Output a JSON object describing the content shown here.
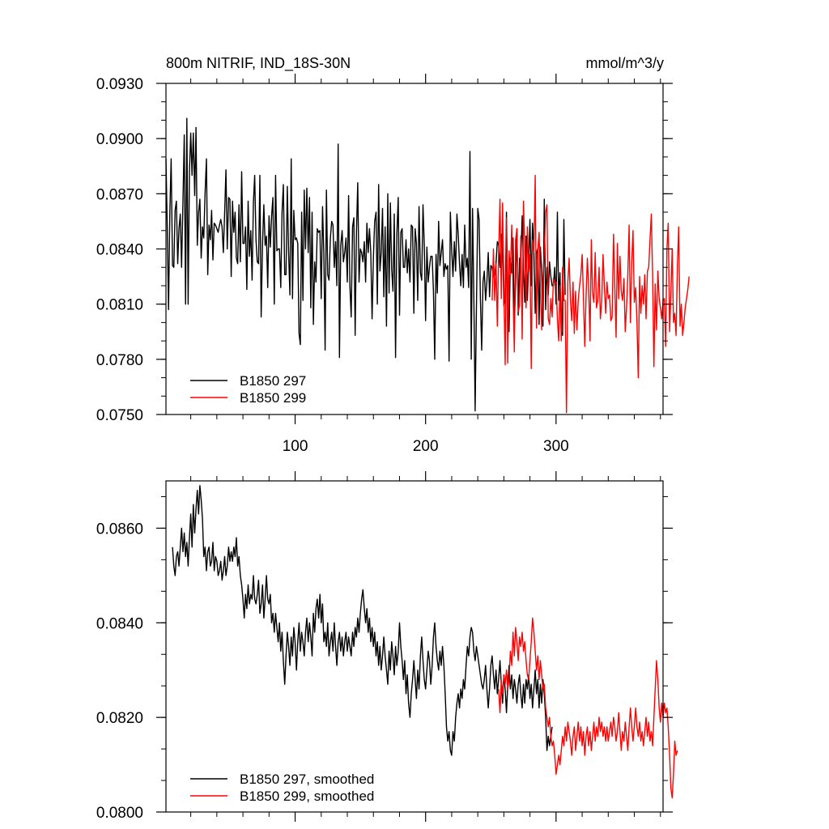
{
  "chart_data": [
    {
      "type": "line",
      "title": "800m NITRIF, IND_18S-30N",
      "units": "mmol/m^3/y",
      "xlabel": "",
      "ylabel": "",
      "xlim": [
        1,
        382
      ],
      "ylim": [
        0.075,
        0.093
      ],
      "xticks": [
        100,
        200,
        300
      ],
      "xtick_labels": [
        "100",
        "200",
        "300"
      ],
      "yticks": [
        0.075,
        0.078,
        0.081,
        0.084,
        0.087,
        0.09,
        0.093
      ],
      "ytick_labels": [
        "0.0750",
        "0.0780",
        "0.0810",
        "0.0840",
        "0.0870",
        "0.0900",
        "0.0930"
      ],
      "grid": false,
      "legend": "bottom-left",
      "series": [
        {
          "name": "B1850 297",
          "color": "#000000",
          "x_start": 1,
          "values": [
            0.0889,
            0.0852,
            0.0807,
            0.086,
            0.0889,
            0.0831,
            0.083,
            0.0861,
            0.0866,
            0.0832,
            0.0851,
            0.0859,
            0.083,
            0.0866,
            0.0902,
            0.081,
            0.0911,
            0.081,
            0.0882,
            0.0903,
            0.088,
            0.0903,
            0.0869,
            0.0906,
            0.0842,
            0.086,
            0.0867,
            0.0835,
            0.0852,
            0.0846,
            0.087,
            0.0889,
            0.0826,
            0.0853,
            0.0845,
            0.0861,
            0.0834,
            0.0854,
            0.0853,
            0.0851,
            0.0849,
            0.0853,
            0.0856,
            0.0852,
            0.0838,
            0.086,
            0.0883,
            0.084,
            0.0868,
            0.0867,
            0.0825,
            0.0866,
            0.0849,
            0.086,
            0.0835,
            0.0832,
            0.0864,
            0.0833,
            0.0882,
            0.0843,
            0.0843,
            0.0852,
            0.0818,
            0.0866,
            0.0836,
            0.085,
            0.0823,
            0.0865,
            0.088,
            0.0845,
            0.0833,
            0.0832,
            0.088,
            0.0803,
            0.0843,
            0.0864,
            0.0842,
            0.0847,
            0.0819,
            0.0858,
            0.0841,
            0.0858,
            0.0868,
            0.081,
            0.088,
            0.0839,
            0.084,
            0.084,
            0.0819,
            0.086,
            0.0875,
            0.0826,
            0.0826,
            0.0874,
            0.0838,
            0.0815,
            0.0889,
            0.0813,
            0.0861,
            0.0845,
            0.0846,
            0.0843,
            0.0794,
            0.0788,
            0.086,
            0.0812,
            0.0872,
            0.084,
            0.0873,
            0.0838,
            0.0868,
            0.0808,
            0.086,
            0.0799,
            0.0833,
            0.0822,
            0.0851,
            0.0849,
            0.085,
            0.0813,
            0.0863,
            0.0838,
            0.0785,
            0.0872,
            0.0826,
            0.0823,
            0.0846,
            0.0855,
            0.0853,
            0.083,
            0.0844,
            0.082,
            0.0897,
            0.0781,
            0.0842,
            0.085,
            0.0833,
            0.0838,
            0.0846,
            0.0822,
            0.0869,
            0.082,
            0.0803,
            0.0852,
            0.0857,
            0.0793,
            0.0849,
            0.0876,
            0.0822,
            0.084,
            0.0838,
            0.0833,
            0.0844,
            0.0822,
            0.0854,
            0.0838,
            0.0851,
            0.0838,
            0.0802,
            0.0835,
            0.0855,
            0.086,
            0.081,
            0.0875,
            0.0828,
            0.0838,
            0.0862,
            0.0814,
            0.0852,
            0.0798,
            0.087,
            0.0816,
            0.0865,
            0.0829,
            0.0817,
            0.0859,
            0.0781,
            0.0848,
            0.0868,
            0.0804,
            0.0849,
            0.0851,
            0.083,
            0.083,
            0.0845,
            0.0827,
            0.084,
            0.0822,
            0.0853,
            0.0852,
            0.0805,
            0.0851,
            0.0843,
            0.0812,
            0.0863,
            0.0827,
            0.0823,
            0.0864,
            0.0842,
            0.0801,
            0.0841,
            0.0822,
            0.083,
            0.0836,
            0.0836,
            0.0817,
            0.078,
            0.0837,
            0.0816,
            0.0855,
            0.0831,
            0.0838,
            0.0845,
            0.0825,
            0.0832,
            0.0829,
            0.0831,
            0.0779,
            0.086,
            0.084,
            0.0825,
            0.0844,
            0.0828,
            0.0859,
            0.0848,
            0.0832,
            0.082,
            0.0837,
            0.0819,
            0.0853,
            0.083,
            0.0835,
            0.0819,
            0.0893,
            0.078,
            0.0862,
            0.0814,
            0.0752,
            0.0808,
            0.0862,
            0.0856,
            0.0813,
            0.0785,
            0.0822,
            0.0828,
            0.0812,
            0.0822,
            0.0838,
            0.0814,
            0.0831,
            0.083,
            0.0825,
            0.0826,
            0.0832,
            0.0844,
            0.0842,
            0.083,
            0.0848,
            0.0846,
            0.0809,
            0.0812,
            0.086,
            0.081,
            0.0795,
            0.0835,
            0.0827,
            0.0846,
            0.0799,
            0.0822,
            0.0851,
            0.0804,
            0.0835,
            0.0833,
            0.0858,
            0.0829,
            0.0811,
            0.0847,
            0.0812,
            0.0833,
            0.0856,
            0.082,
            0.0854,
            0.0838,
            0.0805,
            0.0838,
            0.084,
            0.0799,
            0.0841,
            0.0828,
            0.0798,
            0.0867,
            0.0807,
            0.083,
            0.0815,
            0.0833,
            0.0825,
            0.082,
            0.082,
            0.083,
            0.081,
            0.086,
            0.0812,
            0.0827,
            0.0795,
            0.0793,
            0.0856,
            0.0815
          ]
        },
        {
          "name": "B1850 299",
          "color": "#ff0000",
          "x_start": 251,
          "values": [
            0.0812,
            0.084,
            0.0812,
            0.0832,
            0.0798,
            0.0837,
            0.0867,
            0.0813,
            0.0865,
            0.0818,
            0.0777,
            0.0857,
            0.0778,
            0.0839,
            0.0826,
            0.0853,
            0.0817,
            0.0784,
            0.0845,
            0.0851,
            0.0806,
            0.0809,
            0.0847,
            0.0791,
            0.0866,
            0.084,
            0.0808,
            0.0852,
            0.0828,
            0.0837,
            0.0775,
            0.0845,
            0.0838,
            0.088,
            0.0797,
            0.0839,
            0.0849,
            0.0818,
            0.0796,
            0.0824,
            0.0838,
            0.086,
            0.0864,
            0.0802,
            0.0799,
            0.0813,
            0.0803,
            0.0824,
            0.0822,
            0.0822,
            0.0802,
            0.079,
            0.082,
            0.079,
            0.083,
            0.0812,
            0.0812,
            0.0751,
            0.0822,
            0.0835,
            0.0812,
            0.0801,
            0.0822,
            0.0794,
            0.0817,
            0.0796,
            0.0812,
            0.082,
            0.0826,
            0.0837,
            0.0813,
            0.0787,
            0.0814,
            0.0835,
            0.082,
            0.079,
            0.0845,
            0.0816,
            0.0811,
            0.0838,
            0.0808,
            0.0812,
            0.083,
            0.0802,
            0.0812,
            0.0837,
            0.082,
            0.0805,
            0.0822,
            0.0813,
            0.0815,
            0.0801,
            0.0803,
            0.0848,
            0.082,
            0.0792,
            0.0843,
            0.0813,
            0.0836,
            0.0817,
            0.0812,
            0.0824,
            0.0795,
            0.0808,
            0.0826,
            0.0853,
            0.08,
            0.0832,
            0.085,
            0.0811,
            0.0819,
            0.08,
            0.077,
            0.0825,
            0.0805,
            0.082,
            0.081,
            0.0826,
            0.0802,
            0.0828,
            0.083,
            0.0845,
            0.0859,
            0.0826,
            0.0776,
            0.0821,
            0.0796,
            0.0828,
            0.0813,
            0.0808,
            0.0802,
            0.0812,
            0.0813,
            0.0787,
            0.084,
            0.0854,
            0.0795,
            0.0816,
            0.084,
            0.08,
            0.0805,
            0.0793,
            0.083,
            0.0852,
            0.0798,
            0.081,
            0.0793,
            0.08,
            0.0808,
            0.0813,
            0.0818,
            0.0825
          ]
        }
      ]
    },
    {
      "type": "line",
      "title": "",
      "xlabel": "",
      "ylabel": "",
      "xlim": [
        1,
        382
      ],
      "ylim": [
        0.08,
        0.087
      ],
      "xticks": [
        100,
        200,
        300
      ],
      "xtick_labels": [],
      "yticks": [
        0.08,
        0.082,
        0.084,
        0.086
      ],
      "ytick_labels": [
        "0.0800",
        "0.0820",
        "0.0840",
        "0.0860"
      ],
      "grid": false,
      "legend": "bottom-left",
      "series": [
        {
          "name": "B1850 297, smoothed",
          "color": "#000000",
          "x_start": 6,
          "values": [
            0.0856,
            0.0852,
            0.085,
            0.0854,
            0.0855,
            0.0852,
            0.0856,
            0.086,
            0.0855,
            0.0859,
            0.0854,
            0.0857,
            0.0852,
            0.0858,
            0.0863,
            0.0856,
            0.0865,
            0.0859,
            0.0864,
            0.0868,
            0.0863,
            0.0869,
            0.0866,
            0.0862,
            0.0854,
            0.0856,
            0.0851,
            0.0855,
            0.0856,
            0.0852,
            0.0853,
            0.0857,
            0.0851,
            0.0854,
            0.0853,
            0.085,
            0.0851,
            0.0853,
            0.0849,
            0.0851,
            0.0854,
            0.085,
            0.0852,
            0.0856,
            0.0853,
            0.0855,
            0.0853,
            0.0856,
            0.0854,
            0.0858,
            0.0852,
            0.0854,
            0.085,
            0.0848,
            0.0845,
            0.0841,
            0.0846,
            0.0843,
            0.0848,
            0.0844,
            0.0846,
            0.0845,
            0.085,
            0.0845,
            0.0844,
            0.0846,
            0.0849,
            0.0842,
            0.0844,
            0.0848,
            0.0841,
            0.0845,
            0.085,
            0.0845,
            0.0844,
            0.0846,
            0.084,
            0.0842,
            0.0838,
            0.0842,
            0.0839,
            0.0836,
            0.084,
            0.0834,
            0.0838,
            0.0832,
            0.0827,
            0.0833,
            0.0838,
            0.0835,
            0.0831,
            0.0837,
            0.0833,
            0.0839,
            0.0836,
            0.083,
            0.0836,
            0.084,
            0.0834,
            0.0838,
            0.0836,
            0.0833,
            0.0838,
            0.0841,
            0.0836,
            0.084,
            0.0837,
            0.0833,
            0.0842,
            0.0838,
            0.0843,
            0.0845,
            0.0841,
            0.0846,
            0.084,
            0.0844,
            0.0836,
            0.0838,
            0.0835,
            0.084,
            0.0833,
            0.0836,
            0.0838,
            0.0834,
            0.084,
            0.0835,
            0.0831,
            0.0836,
            0.0838,
            0.0834,
            0.0837,
            0.0833,
            0.0836,
            0.0838,
            0.0834,
            0.0837,
            0.0835,
            0.0833,
            0.0838,
            0.0835,
            0.0839,
            0.0837,
            0.0841,
            0.0838,
            0.0842,
            0.0845,
            0.0847,
            0.0843,
            0.084,
            0.0843,
            0.0838,
            0.0841,
            0.0836,
            0.0839,
            0.0835,
            0.0838,
            0.0833,
            0.0836,
            0.0831,
            0.0835,
            0.083,
            0.0833,
            0.0837,
            0.0833,
            0.083,
            0.0827,
            0.0834,
            0.083,
            0.0836,
            0.0833,
            0.0829,
            0.0835,
            0.0831,
            0.0834,
            0.084,
            0.0835,
            0.0832,
            0.0828,
            0.0832,
            0.0825,
            0.0829,
            0.0823,
            0.082,
            0.0825,
            0.0828,
            0.0832,
            0.0828,
            0.0824,
            0.083,
            0.0826,
            0.0833,
            0.0837,
            0.0832,
            0.0828,
            0.0826,
            0.083,
            0.0834,
            0.0832,
            0.0827,
            0.0831,
            0.0837,
            0.084,
            0.0835,
            0.0832,
            0.083,
            0.0834,
            0.0831,
            0.0835,
            0.0831,
            0.0825,
            0.0818,
            0.0815,
            0.0817,
            0.0813,
            0.0812,
            0.0817,
            0.0815,
            0.082,
            0.0823,
            0.0825,
            0.0822,
            0.0826,
            0.0824,
            0.0828,
            0.0826,
            0.0831,
            0.0835,
            0.0833,
            0.0837,
            0.0839,
            0.0838,
            0.0834,
            0.0832,
            0.0835,
            0.0833,
            0.0831,
            0.0829,
            0.0827,
            0.0826,
            0.0828,
            0.0831,
            0.0826,
            0.0822,
            0.0826,
            0.0831,
            0.0833,
            0.0829,
            0.0826,
            0.083,
            0.0825,
            0.0828,
            0.0832,
            0.0827,
            0.0823,
            0.0829,
            0.0826,
            0.0821,
            0.0827,
            0.0831,
            0.0826,
            0.0829,
            0.0824,
            0.0828,
            0.0826,
            0.0823,
            0.0827,
            0.0829,
            0.0825,
            0.0822,
            0.0827,
            0.0823,
            0.0828,
            0.0826,
            0.0829,
            0.0824,
            0.0827,
            0.0822,
            0.0826,
            0.083,
            0.0825,
            0.0828,
            0.0822,
            0.0827,
            0.0823,
            0.0828,
            0.0825,
            0.082,
            0.0813,
            0.0816,
            0.0814,
            0.0816,
            0.0818
          ]
        },
        {
          "name": "B1850 299, smoothed",
          "color": "#ff0000",
          "x_start": 256,
          "values": [
            0.0826,
            0.0821,
            0.0828,
            0.0825,
            0.0829,
            0.0827,
            0.083,
            0.0826,
            0.0828,
            0.0834,
            0.0831,
            0.0838,
            0.0833,
            0.0839,
            0.0836,
            0.0832,
            0.0837,
            0.0835,
            0.0838,
            0.0834,
            0.0836,
            0.0832,
            0.0829,
            0.0828,
            0.0832,
            0.0836,
            0.0841,
            0.0838,
            0.0834,
            0.083,
            0.0833,
            0.0828,
            0.0832,
            0.0829,
            0.0826,
            0.0827,
            0.0822,
            0.082,
            0.0818,
            0.082,
            0.0816,
            0.0814,
            0.0815,
            0.0812,
            0.0808,
            0.081,
            0.0812,
            0.081,
            0.0813,
            0.0816,
            0.0814,
            0.0818,
            0.0815,
            0.0819,
            0.0817,
            0.0815,
            0.0812,
            0.0816,
            0.0818,
            0.0813,
            0.0816,
            0.0819,
            0.0815,
            0.0818,
            0.0814,
            0.0817,
            0.0812,
            0.0816,
            0.0818,
            0.0814,
            0.0817,
            0.0813,
            0.0816,
            0.0819,
            0.0815,
            0.0818,
            0.0816,
            0.082,
            0.0817,
            0.0819,
            0.0816,
            0.0818,
            0.0815,
            0.0818,
            0.0815,
            0.0817,
            0.0819,
            0.0816,
            0.082,
            0.0818,
            0.0815,
            0.0817,
            0.0821,
            0.0817,
            0.0813,
            0.0817,
            0.0815,
            0.0819,
            0.0816,
            0.0813,
            0.0818,
            0.0822,
            0.0818,
            0.0815,
            0.0818,
            0.0822,
            0.0818,
            0.0816,
            0.0819,
            0.0815,
            0.0817,
            0.0814,
            0.0817,
            0.082,
            0.0816,
            0.0819,
            0.0815,
            0.0817,
            0.0814,
            0.082,
            0.0826,
            0.0832,
            0.0828,
            0.0822,
            0.0819,
            0.0823,
            0.082,
            0.0823,
            0.0821,
            0.0822,
            0.0818,
            0.0812,
            0.0805,
            0.0803,
            0.0808,
            0.0815,
            0.0812,
            0.0813
          ]
        }
      ]
    }
  ]
}
